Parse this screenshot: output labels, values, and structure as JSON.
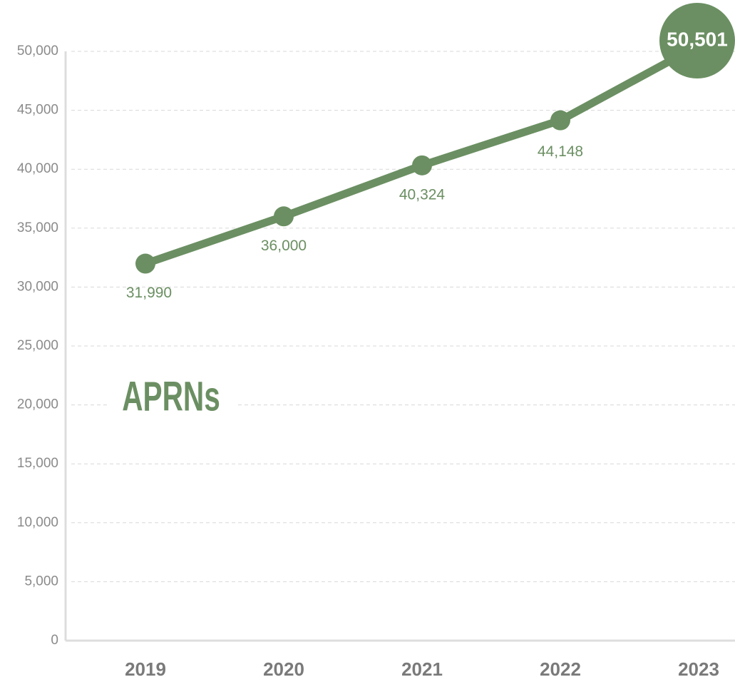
{
  "chart_data": {
    "type": "line",
    "title": "APRNs",
    "categories": [
      "2019",
      "2020",
      "2021",
      "2022",
      "2023"
    ],
    "values": [
      31990,
      36000,
      40324,
      44148,
      50501
    ],
    "value_labels": [
      "31,990",
      "36,000",
      "40,324",
      "44,148",
      "50,501"
    ],
    "color": "#6b8f62",
    "ylim": [
      0,
      50000
    ],
    "yticks": [
      0,
      {
        "value": 5000,
        "label": "5,000"
      },
      {
        "value": 10000,
        "label": "10,000"
      },
      {
        "value": 15000,
        "label": "15,000"
      },
      {
        "value": 20000,
        "label": "20,000"
      },
      {
        "value": 25000,
        "label": "25,000"
      },
      {
        "value": 30000,
        "label": "30,000"
      },
      {
        "value": 35000,
        "label": "35,000"
      },
      {
        "value": 40000,
        "label": "40,000"
      },
      {
        "value": 45000,
        "label": "45,000"
      },
      {
        "value": 50000,
        "label": "50,000"
      }
    ],
    "grid": true
  }
}
